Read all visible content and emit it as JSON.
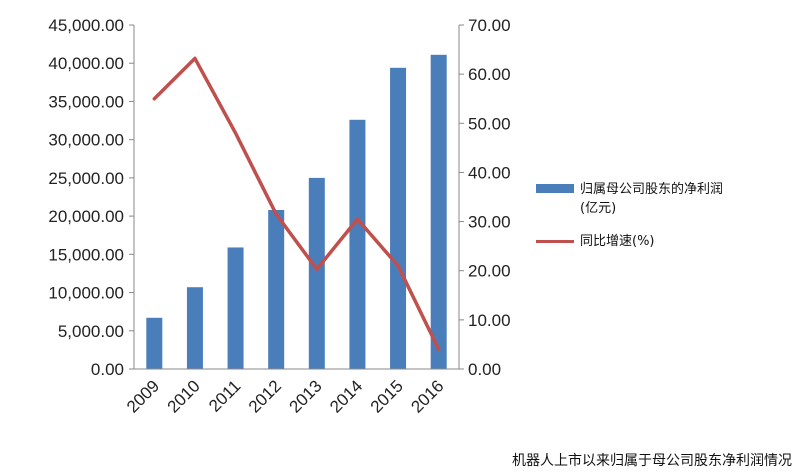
{
  "chart_data": {
    "type": "bar",
    "categories": [
      "2009",
      "2010",
      "2011",
      "2012",
      "2013",
      "2014",
      "2015",
      "2016"
    ],
    "series": [
      {
        "name": "归属母公司股东的净利润(亿元)",
        "kind": "bar",
        "axis": "left",
        "color": "#4a7ebb",
        "values": [
          6700,
          10700,
          15900,
          20800,
          25000,
          32600,
          39400,
          41100
        ]
      },
      {
        "name": "同比增速(%)",
        "kind": "line",
        "axis": "right",
        "color": "#c0504d",
        "values": [
          55,
          63.2,
          48,
          31.5,
          20.3,
          30.5,
          21,
          4
        ]
      }
    ],
    "y_left": {
      "ylim": [
        0,
        45000
      ],
      "ticks": [
        "0.00",
        "5,000.00",
        "10,000.00",
        "15,000.00",
        "20,000.00",
        "25,000.00",
        "30,000.00",
        "35,000.00",
        "40,000.00",
        "45,000.00"
      ]
    },
    "y_right": {
      "ylim": [
        0,
        70
      ],
      "ticks": [
        "0.00",
        "10.00",
        "20.00",
        "30.00",
        "40.00",
        "50.00",
        "60.00",
        "70.00"
      ]
    },
    "legend_position": "right",
    "grid": false
  },
  "caption": "机器人上市以来归属于母公司股东净利润情况"
}
